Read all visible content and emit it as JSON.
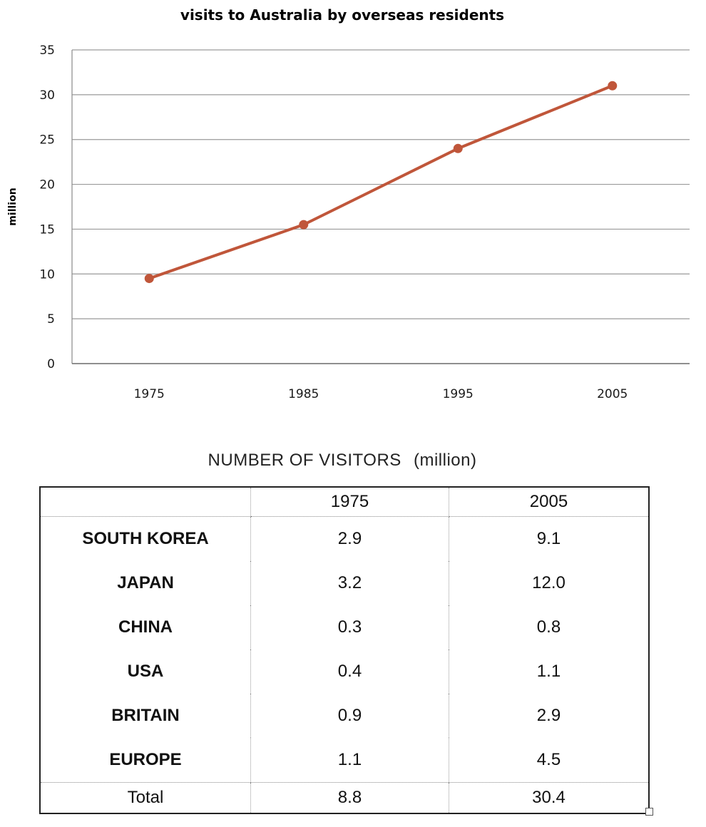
{
  "chart_data": {
    "type": "line",
    "title": "visits to Australia by overseas residents",
    "ylabel": "million",
    "xlabel": "",
    "categories": [
      "1975",
      "1985",
      "1995",
      "2005"
    ],
    "values": [
      9.5,
      15.5,
      24,
      31
    ],
    "ylim": [
      0,
      35
    ],
    "yticks": [
      "0",
      "5",
      "10",
      "15",
      "20",
      "25",
      "30",
      "35"
    ],
    "grid": true,
    "color": "#c0563a"
  },
  "table": {
    "title": "NUMBER OF VISITORS",
    "unit": "(million)",
    "headers": [
      "",
      "1975",
      "2005"
    ],
    "rows": [
      [
        "SOUTH KOREA",
        "2.9",
        "9.1"
      ],
      [
        "JAPAN",
        "3.2",
        "12.0"
      ],
      [
        "CHINA",
        "0.3",
        "0.8"
      ],
      [
        "USA",
        "0.4",
        "1.1"
      ],
      [
        "BRITAIN",
        "0.9",
        "2.9"
      ],
      [
        "EUROPE",
        "1.1",
        "4.5"
      ]
    ],
    "total": [
      "Total",
      "8.8",
      "30.4"
    ]
  }
}
